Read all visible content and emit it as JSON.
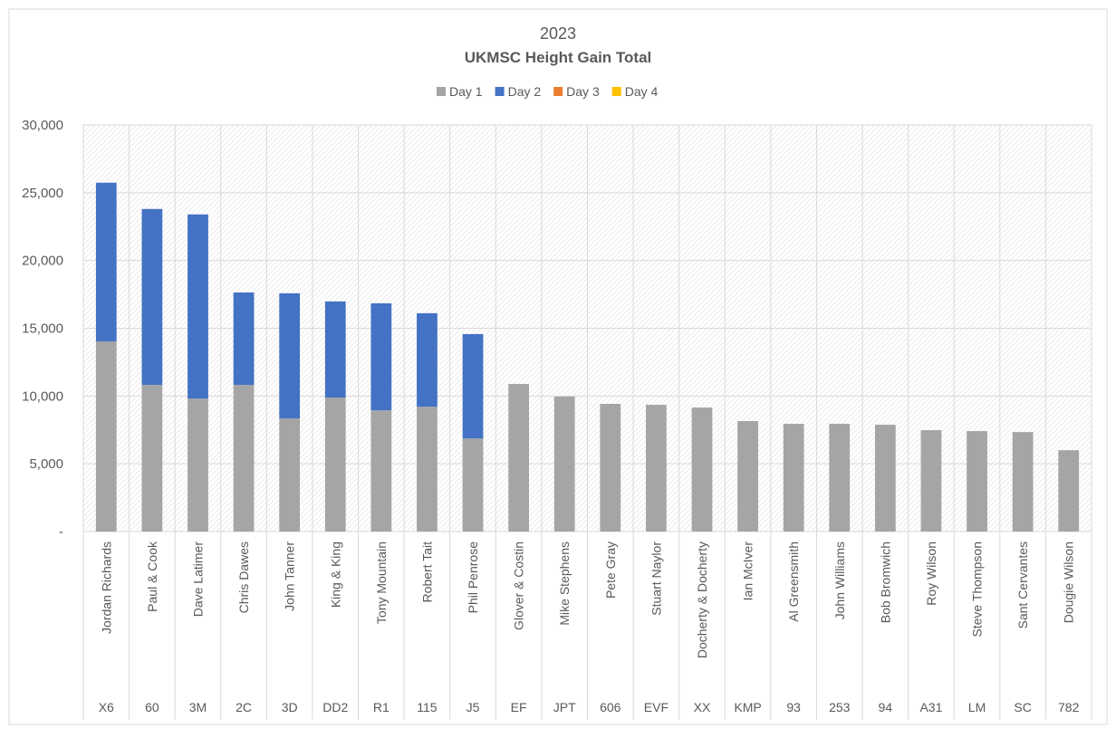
{
  "chart_data": {
    "type": "bar",
    "stacked": true,
    "title": "2023",
    "subtitle": "UKMSC Height Gain Total",
    "xlabel": "",
    "ylabel": "",
    "ylim": [
      0,
      30000
    ],
    "yticks": [
      "-",
      "5,000",
      "10,000",
      "15,000",
      "20,000",
      "25,000",
      "30,000"
    ],
    "grid": true,
    "legend": "top",
    "categories": [
      "Jordan Richards",
      "Paul & Cook",
      "Dave Latimer",
      "Chris Dawes",
      "John Tanner",
      "King & King",
      "Tony Mountain",
      "Robert Tait",
      "Phil Penrose",
      "Glover & Costin",
      "Mike Stephens",
      "Pete Gray",
      "Stuart Naylor",
      "Docherty & Docherty",
      "Ian McIver",
      "Al Greensmith",
      "John Williams",
      "Bob Bromwich",
      "Roy Wilson",
      "Steve Thompson",
      "Sant Cervantes",
      "Dougie Wilson"
    ],
    "codes": [
      "X6",
      "60",
      "3M",
      "2C",
      "3D",
      "DD2",
      "R1",
      "115",
      "J5",
      "EF",
      "JPT",
      "606",
      "EVF",
      "XX",
      "KMP",
      "93",
      "253",
      "94",
      "A31",
      "LM",
      "SC",
      "782"
    ],
    "series": [
      {
        "name": "Day 1",
        "color": "#a5a5a5",
        "values": [
          14030,
          10820,
          9810,
          10820,
          8340,
          9880,
          8940,
          9210,
          6870,
          10890,
          9960,
          9420,
          9350,
          9150,
          8150,
          7950,
          7950,
          7880,
          7480,
          7410,
          7340,
          6000
        ]
      },
      {
        "name": "Day 2",
        "color": "#4472c4",
        "values": [
          11710,
          12980,
          13590,
          6820,
          9240,
          7100,
          7900,
          6900,
          7700,
          0,
          0,
          0,
          0,
          0,
          0,
          0,
          0,
          0,
          0,
          0,
          0,
          0
        ]
      },
      {
        "name": "Day 3",
        "color": "#ed7d31",
        "values": [
          0,
          0,
          0,
          0,
          0,
          0,
          0,
          0,
          0,
          0,
          0,
          0,
          0,
          0,
          0,
          0,
          0,
          0,
          0,
          0,
          0,
          0
        ]
      },
      {
        "name": "Day 4",
        "color": "#ffc000",
        "values": [
          0,
          0,
          0,
          0,
          0,
          0,
          0,
          0,
          0,
          0,
          0,
          0,
          0,
          0,
          0,
          0,
          0,
          0,
          0,
          0,
          0,
          0
        ]
      }
    ]
  }
}
